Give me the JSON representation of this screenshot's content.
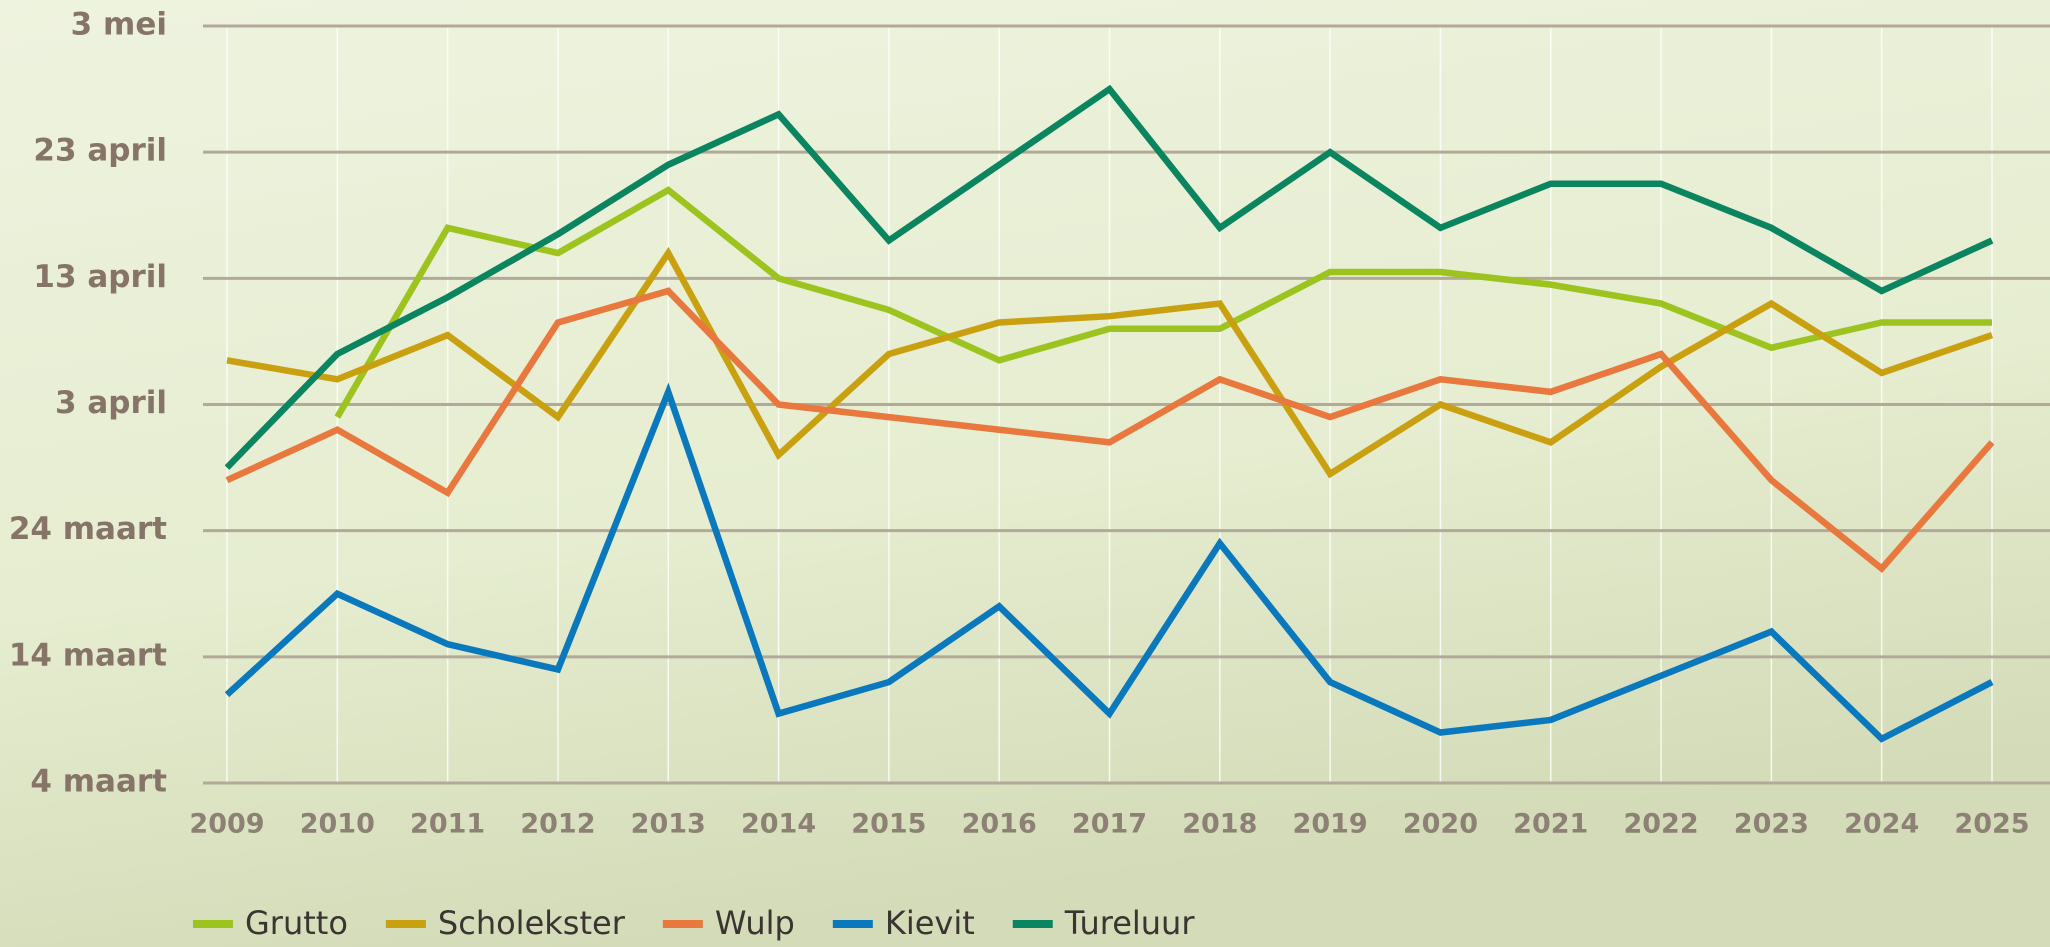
{
  "chart_data": {
    "type": "line",
    "categories": [
      "2009",
      "2010",
      "2011",
      "2012",
      "2013",
      "2014",
      "2015",
      "2016",
      "2017",
      "2018",
      "2019",
      "2020",
      "2021",
      "2022",
      "2023",
      "2024",
      "2025"
    ],
    "series": [
      {
        "name": "Grutto",
        "color": "#9dc31f",
        "values": [
          null,
          92,
          107,
          105,
          110,
          103,
          100.5,
          96.5,
          99,
          99,
          103.5,
          103.5,
          102.5,
          101,
          97.5,
          99.5,
          99.5
        ]
      },
      {
        "name": "Scholekster",
        "color": "#c9a010",
        "values": [
          96.5,
          95,
          98.5,
          92,
          105,
          89,
          97,
          99.5,
          100,
          101,
          87.5,
          93,
          90,
          96,
          101,
          95.5,
          98.5
        ]
      },
      {
        "name": "Wulp",
        "color": "#e8783d",
        "values": [
          87,
          91,
          86,
          99.5,
          102,
          93,
          92,
          91,
          90,
          95,
          92,
          95,
          94,
          97,
          87,
          80,
          90
        ]
      },
      {
        "name": "Kievit",
        "color": "#0a78bd",
        "values": [
          70,
          78,
          74,
          72,
          94,
          68.5,
          71,
          77,
          68.5,
          82,
          71,
          67,
          68,
          71.5,
          75,
          66.5,
          71
        ]
      },
      {
        "name": "Tureluur",
        "color": "#0a8560",
        "values": [
          88,
          97,
          101.5,
          106.5,
          112,
          116,
          106,
          112,
          118,
          107,
          113,
          107,
          110.5,
          110.5,
          107,
          102,
          106
        ]
      }
    ],
    "ylim": [
      63,
      123
    ],
    "yticks": [
      {
        "value": 63,
        "label": "4 maart"
      },
      {
        "value": 73,
        "label": "14 maart"
      },
      {
        "value": 83,
        "label": "24 maart"
      },
      {
        "value": 93,
        "label": "3 april"
      },
      {
        "value": 103,
        "label": "13 april"
      },
      {
        "value": 113,
        "label": "23 april"
      },
      {
        "value": 123,
        "label": "3 mei"
      }
    ],
    "grid": true
  }
}
